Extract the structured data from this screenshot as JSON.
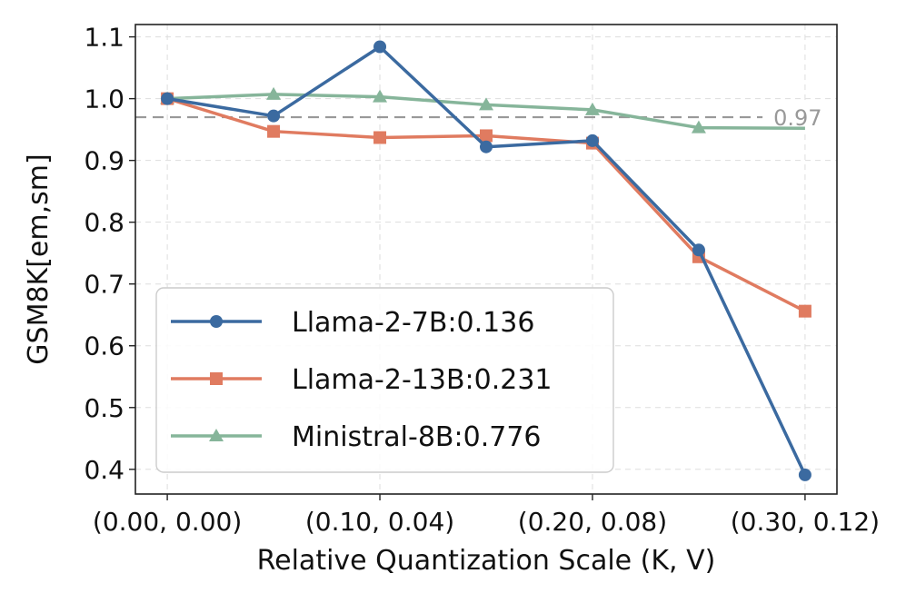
{
  "chart_data": {
    "type": "line",
    "title": "",
    "xlabel": "Relative Quantization Scale (K, V)",
    "ylabel": "GSM8K[em,sm]",
    "x": [
      0,
      0.5,
      1,
      1.5,
      2,
      2.5,
      3
    ],
    "x_ticks": [
      0,
      1,
      2,
      3
    ],
    "x_tick_labels": [
      "(0.00, 0.00)",
      "(0.10, 0.04)",
      "(0.20, 0.08)",
      "(0.30, 0.12)"
    ],
    "xlim": [
      -0.15,
      3.15
    ],
    "ylim": [
      0.36,
      1.12
    ],
    "y_ticks": [
      0.4,
      0.5,
      0.6,
      0.7,
      0.8,
      0.9,
      1.0,
      1.1
    ],
    "y_tick_labels": [
      "0.4",
      "0.5",
      "0.6",
      "0.7",
      "0.8",
      "0.9",
      "1.0",
      "1.1"
    ],
    "grid": true,
    "reference_line": {
      "y": 0.97,
      "label": "0.97",
      "x_end": 2.8,
      "color": "#999999"
    },
    "legend_position": "lower-left",
    "series": [
      {
        "name": "Llama-2-7B:0.136",
        "color": "#3b6aa0",
        "marker": "circle",
        "values": [
          1.0,
          0.972,
          1.084,
          0.922,
          0.932,
          0.755,
          0.391
        ]
      },
      {
        "name": "Llama-2-13B:0.231",
        "color": "#e07b60",
        "marker": "square",
        "values": [
          1.0,
          0.947,
          0.937,
          0.94,
          0.928,
          0.744,
          0.656
        ]
      },
      {
        "name": "Ministral-8B:0.776",
        "color": "#86b59a",
        "marker": "triangle",
        "values": [
          1.0,
          1.007,
          1.003,
          0.99,
          0.982,
          0.953,
          0.952
        ],
        "marker_count": 6
      }
    ]
  }
}
